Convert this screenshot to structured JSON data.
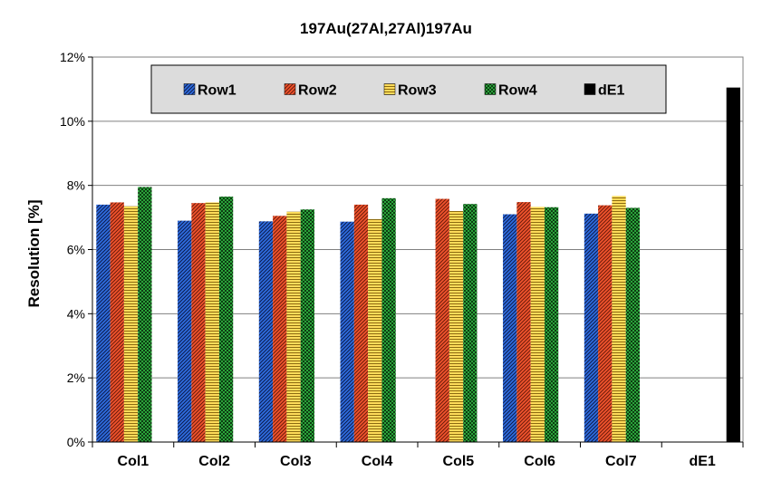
{
  "chart_data": {
    "type": "bar",
    "title": "197Au(27Al,27Al)197Au",
    "xlabel": "",
    "ylabel": "Resolution [%]",
    "ylim": [
      0,
      12
    ],
    "yticks": [
      "0%",
      "2%",
      "4%",
      "6%",
      "8%",
      "10%",
      "12%"
    ],
    "grid": true,
    "legend_position": "top",
    "categories": [
      "Col1",
      "Col2",
      "Col3",
      "Col4",
      "Col5",
      "Col6",
      "Col7",
      "dE1"
    ],
    "series": [
      {
        "name": "Row1",
        "color": "#1f4fb0",
        "pattern": "diagonal-blue",
        "values": [
          7.4,
          6.9,
          6.88,
          6.87,
          null,
          7.1,
          7.12,
          null
        ]
      },
      {
        "name": "Row2",
        "color": "#e84a27",
        "pattern": "diagonal-red",
        "values": [
          7.47,
          7.45,
          7.05,
          7.4,
          7.58,
          7.48,
          7.38,
          null
        ]
      },
      {
        "name": "Row3",
        "color": "#ffd24a",
        "pattern": "horizontal-yellow",
        "values": [
          7.35,
          7.47,
          7.18,
          6.95,
          7.2,
          7.33,
          7.67,
          null
        ]
      },
      {
        "name": "Row4",
        "color": "#1e8c2a",
        "pattern": "checker-green",
        "values": [
          7.95,
          7.65,
          7.25,
          7.6,
          7.42,
          7.32,
          7.3,
          null
        ]
      },
      {
        "name": "dE1",
        "color": "#000000",
        "pattern": "solid-black",
        "values": [
          null,
          null,
          null,
          null,
          null,
          null,
          null,
          11.05
        ]
      }
    ]
  }
}
